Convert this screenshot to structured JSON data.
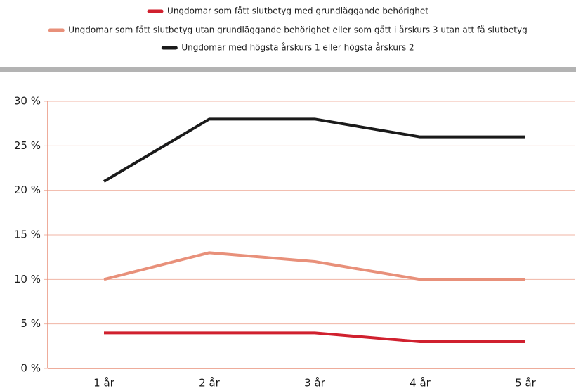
{
  "chart_data": {
    "type": "line",
    "categories": [
      "1 år",
      "2 år",
      "3 år",
      "4 år",
      "5 år"
    ],
    "series": [
      {
        "name": "Ungdomar som fått slutbetyg med grundläggande behörighet",
        "color": "#d0202e",
        "values": [
          4,
          4,
          4,
          3,
          3
        ]
      },
      {
        "name": "Ungdomar som fått slutbetyg utan grundläggande behörighet eller som gått i årskurs 3 utan att få slutbetyg",
        "color": "#e8907a",
        "values": [
          10,
          13,
          12,
          10,
          10
        ]
      },
      {
        "name": "Ungdomar med högsta årskurs 1 eller högsta årskurs 2",
        "color": "#1a1a1a",
        "values": [
          21,
          28,
          28,
          26,
          26
        ]
      }
    ],
    "ylim": [
      0,
      30
    ],
    "yticks": [
      {
        "value": 0,
        "label": "0 %"
      },
      {
        "value": 5,
        "label": "5 %"
      },
      {
        "value": 10,
        "label": "10 %"
      },
      {
        "value": 15,
        "label": "15 %"
      },
      {
        "value": 20,
        "label": "20 %"
      },
      {
        "value": 25,
        "label": "25 %"
      },
      {
        "value": 30,
        "label": "30 %"
      }
    ],
    "grid": true
  }
}
